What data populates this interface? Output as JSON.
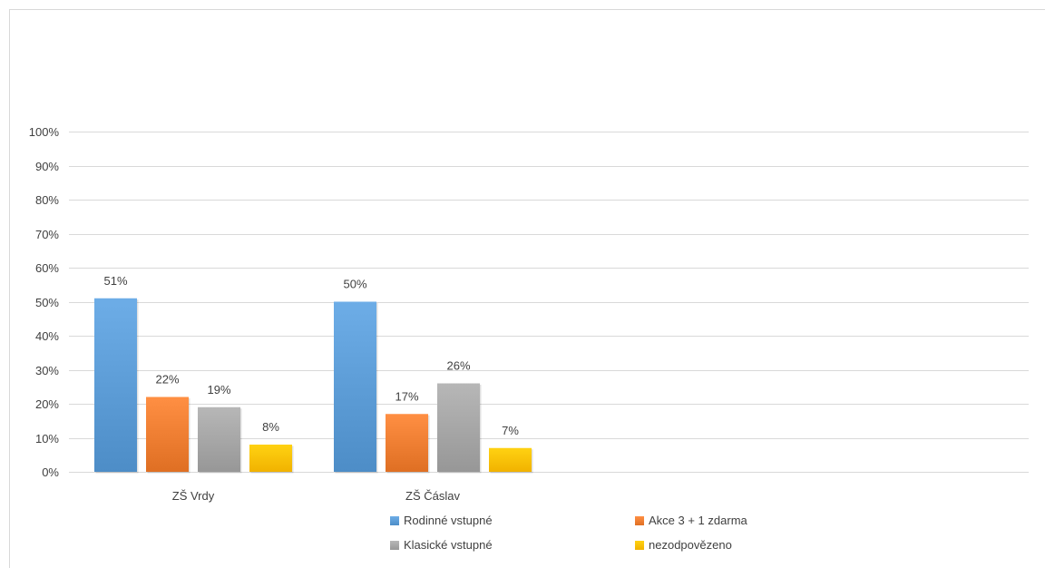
{
  "chart_data": {
    "type": "bar",
    "title": "",
    "xlabel": "",
    "ylabel": "",
    "ylim": [
      0,
      100
    ],
    "yticks": [
      0,
      10,
      20,
      30,
      40,
      50,
      60,
      70,
      80,
      90,
      100
    ],
    "ytick_format": "percent",
    "grid": true,
    "legend_position": "bottom",
    "categories": [
      "ZŠ Vrdy",
      "ZŠ Čáslav"
    ],
    "series": [
      {
        "name": "Rodinné vstupné",
        "color": "#5b9bd5",
        "values": [
          51,
          50
        ]
      },
      {
        "name": "Akce 3 + 1 zdarma",
        "color": "#ed7d31",
        "values": [
          22,
          17
        ]
      },
      {
        "name": "Klasické vstupné",
        "color": "#a5a5a5",
        "values": [
          19,
          26
        ]
      },
      {
        "name": "nezodpovězeno",
        "color": "#ffc000",
        "values": [
          8,
          7
        ]
      }
    ]
  }
}
